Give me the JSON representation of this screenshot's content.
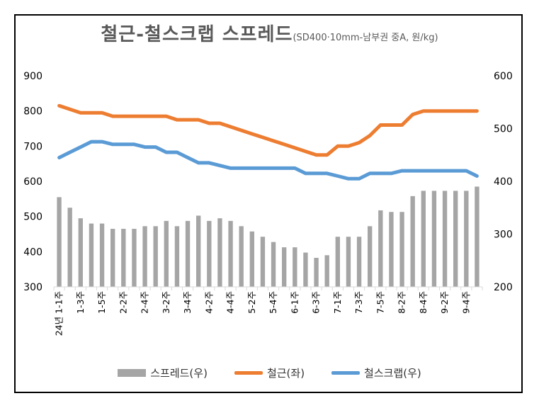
{
  "chart_data": {
    "type": "bar+line",
    "title": "철근-철스크랩 스프레드",
    "subtitle": "(SD400·10mm-남부권 중A,  원/kg)",
    "y_left": {
      "min": 300,
      "max": 900,
      "ticks": [
        300,
        400,
        500,
        600,
        700,
        800,
        900
      ]
    },
    "y_right": {
      "min": 200,
      "max": 600,
      "ticks": [
        200,
        300,
        400,
        500,
        600
      ]
    },
    "x_tick_labels": [
      "24년 1-1주",
      "1-3주",
      "1-5주",
      "2-2주",
      "2-4주",
      "3-2주",
      "3-4주",
      "4-2주",
      "4-4주",
      "5-2주",
      "5-4주",
      "6-1주",
      "6-3주",
      "7-1주",
      "7-3주",
      "7-5주",
      "8-2주",
      "8-4주",
      "9-2주",
      "9-4주"
    ],
    "n_points": 40,
    "series": [
      {
        "name": "스프레드(우)",
        "type": "bar",
        "axis": "right",
        "color": "#a5a5a5",
        "values": [
          370,
          350,
          330,
          320,
          320,
          310,
          310,
          310,
          315,
          315,
          325,
          315,
          325,
          335,
          325,
          330,
          325,
          315,
          305,
          295,
          285,
          275,
          275,
          265,
          255,
          260,
          295,
          295,
          295,
          315,
          345,
          342,
          342,
          372,
          382,
          382,
          382,
          382,
          382,
          390
        ]
      },
      {
        "name": "철근(좌)",
        "type": "line",
        "axis": "left",
        "color": "#ed7d31",
        "values": [
          815,
          805,
          795,
          795,
          795,
          785,
          785,
          785,
          785,
          785,
          785,
          775,
          775,
          775,
          765,
          765,
          755,
          745,
          735,
          725,
          715,
          705,
          695,
          685,
          675,
          675,
          700,
          700,
          710,
          730,
          760,
          760,
          760,
          790,
          800,
          800,
          800,
          800,
          800,
          800
        ]
      },
      {
        "name": "철스크랩(우)",
        "type": "line",
        "axis": "right",
        "color": "#5b9bd5",
        "values": [
          445,
          455,
          465,
          475,
          475,
          470,
          470,
          470,
          465,
          465,
          455,
          455,
          445,
          435,
          435,
          430,
          425,
          425,
          425,
          425,
          425,
          425,
          425,
          415,
          415,
          415,
          410,
          405,
          405,
          415,
          415,
          415,
          420,
          420,
          420,
          420,
          420,
          420,
          420,
          410
        ]
      }
    ],
    "legend": [
      "스프레드(우)",
      "철근(좌)",
      "철스크랩(우)"
    ],
    "legend_position": "bottom"
  }
}
